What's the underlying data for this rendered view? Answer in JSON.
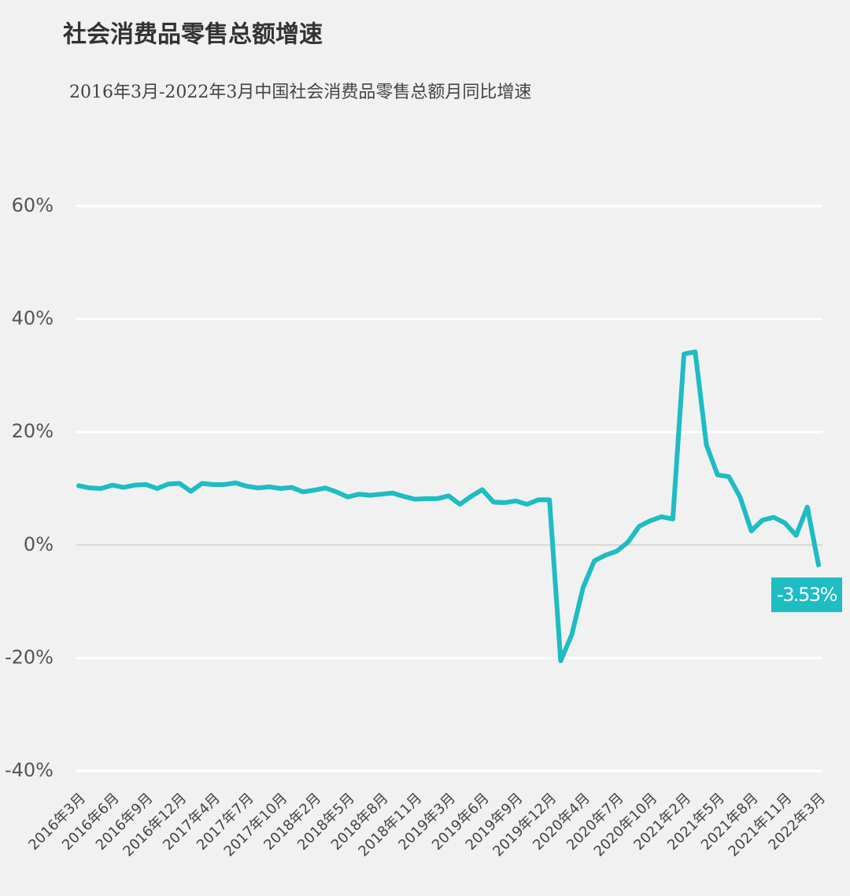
{
  "chart_data": {
    "type": "line",
    "title": "社会消费品零售总额增速",
    "subtitle": "2016年3月-2022年3月中国社会消费品零售总额月同比增速",
    "categories": [
      "2016年3月",
      null,
      null,
      "2016年6月",
      null,
      null,
      "2016年9月",
      null,
      null,
      "2016年12月",
      null,
      null,
      "2017年4月",
      null,
      null,
      "2017年7月",
      null,
      null,
      "2017年10月",
      null,
      null,
      "2018年2月",
      null,
      null,
      "2018年5月",
      null,
      null,
      "2018年8月",
      null,
      null,
      "2018年11月",
      null,
      null,
      "2019年3月",
      null,
      null,
      "2019年6月",
      null,
      null,
      "2019年9月",
      null,
      null,
      "2019年12月",
      null,
      null,
      "2020年4月",
      null,
      null,
      "2020年7月",
      null,
      null,
      "2020年10月",
      null,
      null,
      "2021年2月",
      null,
      null,
      "2021年5月",
      null,
      null,
      "2021年8月",
      null,
      null,
      "2021年11月",
      null,
      null,
      "2022年3月"
    ],
    "values": [
      10.5,
      10.1,
      10.0,
      10.6,
      10.2,
      10.6,
      10.7,
      10.0,
      10.8,
      10.9,
      9.5,
      10.9,
      10.7,
      10.7,
      11.0,
      10.4,
      10.1,
      10.3,
      10.0,
      10.2,
      9.4,
      9.7,
      10.1,
      9.4,
      8.5,
      9.0,
      8.8,
      9.0,
      9.2,
      8.6,
      8.1,
      8.2,
      8.2,
      8.7,
      7.2,
      8.6,
      9.8,
      7.6,
      7.5,
      7.8,
      7.2,
      8.0,
      8.0,
      -20.5,
      -15.8,
      -7.5,
      -2.8,
      -1.8,
      -1.1,
      0.5,
      3.3,
      4.3,
      5.0,
      4.6,
      33.8,
      34.2,
      17.7,
      12.4,
      12.1,
      8.5,
      2.5,
      4.4,
      4.9,
      3.9,
      1.7,
      6.7,
      -3.53
    ],
    "value_labels": [
      null,
      null,
      null,
      null,
      null,
      null,
      null,
      null,
      null,
      null,
      null,
      null,
      null,
      null,
      null,
      null,
      null,
      null,
      null,
      null,
      null,
      null,
      null,
      null,
      null,
      null,
      null,
      null,
      null,
      null,
      null,
      null,
      null,
      null,
      null,
      null,
      null,
      null,
      null,
      null,
      null,
      null,
      null,
      null,
      null,
      null,
      null,
      null,
      null,
      null,
      null,
      null,
      null,
      null,
      null,
      null,
      null,
      null,
      null,
      null,
      null,
      null,
      null,
      null,
      null,
      null,
      "-3.53%"
    ],
    "color": "#1ebcc3",
    "ylim": [
      -40,
      60
    ],
    "yticks": [
      {
        "value": -40,
        "label": "-40%"
      },
      {
        "value": -20,
        "label": "-20%"
      },
      {
        "value": 0,
        "label": "0%"
      },
      {
        "value": 20,
        "label": "20%"
      },
      {
        "value": 40,
        "label": "40%"
      },
      {
        "value": 60,
        "label": "60%"
      }
    ],
    "grid": true
  }
}
